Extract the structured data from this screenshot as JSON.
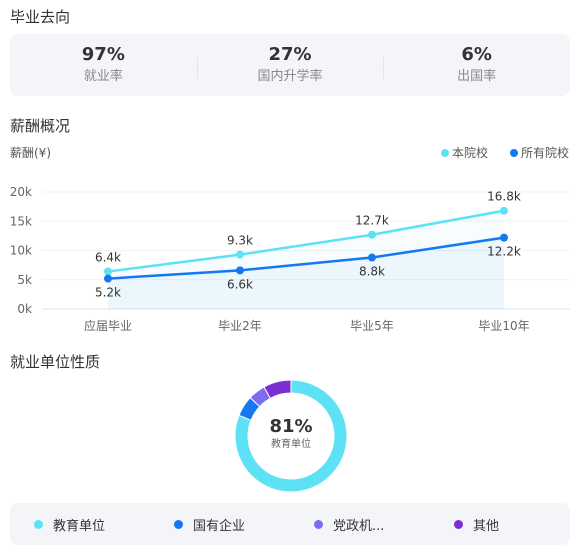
{
  "sections": {
    "destination_title": "毕业去向",
    "salary_title": "薪酬概况",
    "employer_title": "就业单位性质"
  },
  "stats": [
    {
      "value": "97%",
      "label": "就业率"
    },
    {
      "value": "27%",
      "label": "国内升学率"
    },
    {
      "value": "6%",
      "label": "出国率"
    }
  ],
  "colors": {
    "this_school": "#5ce1f5",
    "all_schools": "#1677f2",
    "other_gov": "#7b6cf0",
    "other": "#7a2fd2"
  },
  "chart_data": [
    {
      "type": "line",
      "title": "薪酬概况",
      "ylabel": "薪酬(¥)",
      "categories": [
        "应届毕业",
        "毕业2年",
        "毕业5年",
        "毕业10年"
      ],
      "yticks": [
        "0k",
        "5k",
        "10k",
        "15k",
        "20k"
      ],
      "ylim": [
        0,
        20
      ],
      "unit": "k",
      "legend_position": "top-right",
      "series": [
        {
          "name": "本院校",
          "values": [
            6.4,
            9.3,
            12.7,
            16.8
          ],
          "labels": [
            "6.4k",
            "9.3k",
            "12.7k",
            "16.8k"
          ],
          "color": "#5ce1f5"
        },
        {
          "name": "所有院校",
          "values": [
            5.2,
            6.6,
            8.8,
            12.2
          ],
          "labels": [
            "5.2k",
            "6.6k",
            "8.8k",
            "12.2k"
          ],
          "color": "#1677f2"
        }
      ]
    },
    {
      "type": "pie",
      "title": "就业单位性质",
      "center_value": "81%",
      "center_label": "教育单位",
      "slices": [
        {
          "name": "教育单位",
          "value": 81,
          "color": "#5ce1f5"
        },
        {
          "name": "国有企业",
          "value": 6,
          "color": "#1677f2"
        },
        {
          "name": "党政机...",
          "value": 5,
          "color": "#7b6cf0"
        },
        {
          "name": "其他",
          "value": 8,
          "color": "#7a2fd2"
        }
      ]
    }
  ]
}
